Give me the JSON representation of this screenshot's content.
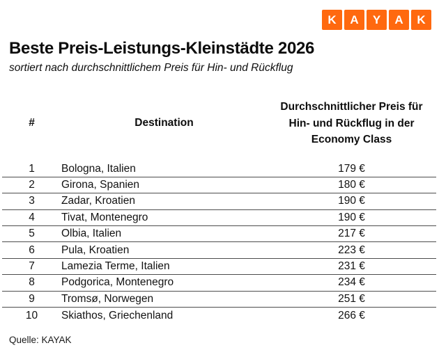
{
  "brand": {
    "logo_letters": [
      "K",
      "A",
      "Y",
      "A",
      "K"
    ],
    "logo_color": "#FF690F"
  },
  "header": {
    "title": "Beste Preis-Leistungs-Kleinstädte 2026",
    "subtitle": "sortiert nach durchschnittlichem Preis für Hin- und Rückflug"
  },
  "table": {
    "columns": {
      "rank": "#",
      "destination": "Destination",
      "price": "Durchschnittlicher Preis für Hin- und Rückflug in der Economy Class"
    },
    "rows": [
      {
        "rank": "1",
        "destination": "Bologna, Italien",
        "price": "179 €"
      },
      {
        "rank": "2",
        "destination": "Girona, Spanien",
        "price": "180 €"
      },
      {
        "rank": "3",
        "destination": "Zadar, Kroatien",
        "price": "190 €"
      },
      {
        "rank": "4",
        "destination": "Tivat, Montenegro",
        "price": "190 €"
      },
      {
        "rank": "5",
        "destination": "Olbia, Italien",
        "price": "217 €"
      },
      {
        "rank": "6",
        "destination": "Pula, Kroatien",
        "price": "223 €"
      },
      {
        "rank": "7",
        "destination": "Lamezia Terme, Italien",
        "price": "231 €"
      },
      {
        "rank": "8",
        "destination": "Podgorica, Montenegro",
        "price": "234 €"
      },
      {
        "rank": "9",
        "destination": "Tromsø, Norwegen",
        "price": "251 €"
      },
      {
        "rank": "10",
        "destination": "Skiathos, Griechenland",
        "price": "266 €"
      }
    ]
  },
  "footer": {
    "source": "Quelle: KAYAK"
  },
  "chart_data": {
    "type": "table",
    "title": "Beste Preis-Leistungs-Kleinstädte 2026",
    "subtitle": "sortiert nach durchschnittlichem Preis für Hin- und Rückflug",
    "columns": [
      "#",
      "Destination",
      "Durchschnittlicher Preis für Hin- und Rückflug in der Economy Class"
    ],
    "rows": [
      [
        1,
        "Bologna, Italien",
        "179 €"
      ],
      [
        2,
        "Girona, Spanien",
        "180 €"
      ],
      [
        3,
        "Zadar, Kroatien",
        "190 €"
      ],
      [
        4,
        "Tivat, Montenegro",
        "190 €"
      ],
      [
        5,
        "Olbia, Italien",
        "217 €"
      ],
      [
        6,
        "Pula, Kroatien",
        "223 €"
      ],
      [
        7,
        "Lamezia Terme, Italien",
        "231 €"
      ],
      [
        8,
        "Podgorica, Montenegro",
        "234 €"
      ],
      [
        9,
        "Tromsø, Norwegen",
        "251 €"
      ],
      [
        10,
        "Skiathos, Griechenland",
        "266 €"
      ]
    ],
    "prices_eur": [
      179,
      180,
      190,
      190,
      217,
      223,
      231,
      234,
      251,
      266
    ],
    "currency": "EUR",
    "source": "Quelle: KAYAK"
  }
}
